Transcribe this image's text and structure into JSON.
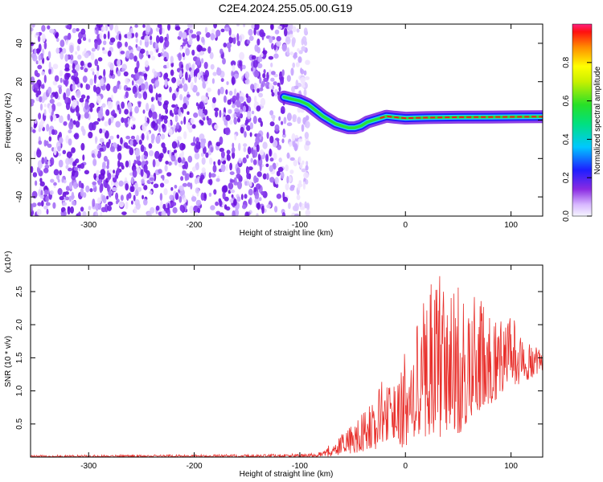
{
  "title": "C2E4.2024.255.05.00.G19",
  "colors": {
    "snr_line": "#e8302c",
    "scatter_purple": "#7a1fe0",
    "ridge_main": "#f01c1c",
    "ridge_secondary": "#22d2ff",
    "ridge_green": "#2adf3a"
  },
  "chart_data": [
    {
      "type": "heatmap",
      "title": "C2E4.2024.255.05.00.G19",
      "xlabel": "Height of straight line (km)",
      "ylabel": "Frequency (Hz)",
      "xlim": [
        -355,
        130
      ],
      "ylim": [
        -50,
        50
      ],
      "x_ticks": [
        -300,
        -200,
        -100,
        0,
        100
      ],
      "y_ticks": [
        -40,
        -20,
        0,
        20,
        40
      ],
      "x_tick_labels": [
        "-300",
        "-200",
        "-100",
        "0",
        "100"
      ],
      "y_tick_labels": [
        "-40",
        "-20",
        "0",
        "20",
        "40"
      ],
      "noise_region_x": [
        -355,
        -92
      ],
      "signal_ridge": {
        "x": [
          -115,
          -108,
          -100,
          -92,
          -85,
          -78,
          -72,
          -66,
          -60,
          -54,
          -48,
          -42,
          -36,
          -30,
          -24,
          -18,
          -10,
          0,
          20,
          50,
          80,
          110,
          130
        ],
        "frequency": [
          12,
          11,
          10,
          8,
          5,
          2,
          0,
          -2,
          -3,
          -4,
          -4,
          -3,
          -1,
          0,
          1,
          2,
          1.5,
          1,
          1.3,
          1.5,
          1.6,
          1.7,
          1.8
        ]
      },
      "colorbar": {
        "label": "Normalized spectral amplitude",
        "range": [
          0,
          1
        ],
        "ticks": [
          0.0,
          0.2,
          0.4,
          0.6,
          0.8
        ],
        "tick_labels": [
          "0.0",
          "0.2",
          "0.4",
          "0.6",
          "0.8"
        ]
      }
    },
    {
      "type": "line",
      "xlabel": "Height of straight line (km)",
      "ylabel": "SNR (10 * v/v)",
      "y_multiplier": "(x10⁴)",
      "xlim": [
        -355,
        130
      ],
      "ylim": [
        0,
        2.9
      ],
      "x_ticks": [
        -300,
        -200,
        -100,
        0,
        100
      ],
      "y_ticks": [
        0.5,
        1.0,
        1.5,
        2.0,
        2.5
      ],
      "x_tick_labels": [
        "-300",
        "-200",
        "-100",
        "0",
        "100"
      ],
      "y_tick_labels": [
        "0.5",
        "1.0",
        "1.5",
        "2.0",
        "2.5"
      ],
      "envelope": {
        "x": [
          -355,
          -150,
          -100,
          -80,
          -60,
          -50,
          -40,
          -30,
          -20,
          -10,
          0,
          10,
          20,
          30,
          40,
          50,
          60,
          70,
          80,
          90,
          100,
          110,
          120,
          130
        ],
        "low": [
          0.0,
          0.0,
          0.0,
          0.0,
          0.02,
          0.03,
          0.05,
          0.1,
          0.2,
          0.3,
          0.05,
          0.2,
          0.3,
          0.3,
          0.3,
          0.3,
          0.5,
          0.7,
          0.8,
          0.9,
          1.1,
          1.1,
          1.2,
          1.3
        ],
        "high": [
          0.03,
          0.04,
          0.05,
          0.08,
          0.35,
          0.5,
          0.7,
          0.9,
          1.3,
          1.2,
          1.6,
          2.2,
          2.6,
          2.9,
          2.55,
          2.6,
          2.5,
          2.5,
          2.4,
          2.3,
          2.2,
          1.8,
          1.7,
          1.6
        ]
      }
    }
  ]
}
